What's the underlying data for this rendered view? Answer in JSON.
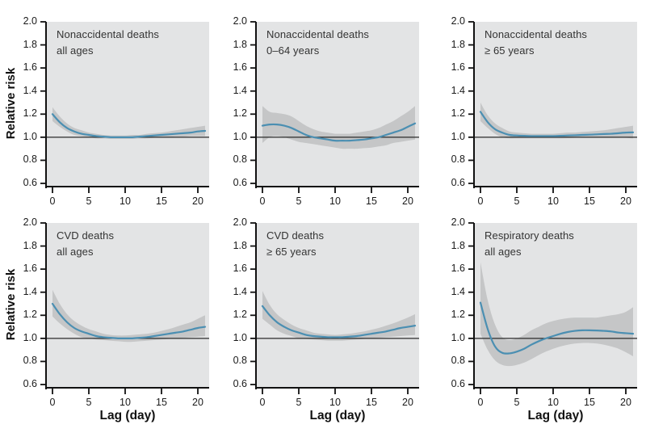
{
  "chart_data": {
    "type": "line",
    "ylabel": "Relative risk",
    "xlabel": "Lag (day)",
    "x_ticks": [
      0,
      5,
      10,
      15,
      20
    ],
    "y_ticks": [
      2.0,
      1.8,
      1.6,
      1.4,
      1.2,
      1.0,
      0.8,
      0.6
    ],
    "xlim": [
      0,
      21
    ],
    "ylim": [
      0.6,
      2.0
    ],
    "reference_line_y": 1.0,
    "grid": false,
    "legend": "none",
    "colors": {
      "panel_bg": "#e3e4e5",
      "band": "#c5c6c7",
      "line": "#4b8fb2",
      "reference": "#2a2a2a",
      "axis": "#111111",
      "tick_text": "#1a1a1a",
      "title_text": "#333333"
    },
    "x": [
      0,
      1,
      2,
      3,
      4,
      5,
      6,
      7,
      8,
      9,
      10,
      11,
      12,
      13,
      14,
      15,
      16,
      17,
      18,
      19,
      20,
      21
    ],
    "panels": [
      {
        "title_line1": "Nonaccidental deaths",
        "title_line2": "all ages",
        "y": [
          1.2,
          1.13,
          1.08,
          1.05,
          1.03,
          1.02,
          1.01,
          1.005,
          1.0,
          1.0,
          1.0,
          1.0,
          1.005,
          1.01,
          1.015,
          1.02,
          1.025,
          1.03,
          1.035,
          1.04,
          1.05,
          1.055
        ],
        "lo": [
          1.14,
          1.09,
          1.05,
          1.02,
          1.01,
          1.0,
          0.99,
          0.99,
          0.985,
          0.985,
          0.985,
          0.985,
          0.99,
          0.99,
          0.995,
          1.0,
          1.0,
          1.005,
          1.005,
          1.01,
          1.01,
          1.01
        ],
        "hi": [
          1.26,
          1.18,
          1.12,
          1.08,
          1.06,
          1.04,
          1.03,
          1.02,
          1.015,
          1.015,
          1.015,
          1.02,
          1.02,
          1.03,
          1.035,
          1.04,
          1.05,
          1.06,
          1.07,
          1.08,
          1.09,
          1.1
        ]
      },
      {
        "title_line1": "Nonaccidental deaths",
        "title_line2": "0–64 years",
        "y": [
          1.1,
          1.11,
          1.11,
          1.1,
          1.08,
          1.05,
          1.02,
          1.0,
          0.99,
          0.98,
          0.97,
          0.97,
          0.97,
          0.975,
          0.98,
          0.99,
          1.0,
          1.02,
          1.04,
          1.06,
          1.09,
          1.12
        ],
        "lo": [
          0.95,
          1.0,
          1.01,
          1.0,
          0.98,
          0.96,
          0.95,
          0.94,
          0.93,
          0.92,
          0.91,
          0.9,
          0.9,
          0.9,
          0.905,
          0.91,
          0.92,
          0.93,
          0.95,
          0.96,
          0.97,
          0.98
        ],
        "hi": [
          1.27,
          1.22,
          1.21,
          1.2,
          1.18,
          1.14,
          1.1,
          1.07,
          1.05,
          1.04,
          1.03,
          1.03,
          1.03,
          1.04,
          1.05,
          1.06,
          1.08,
          1.11,
          1.14,
          1.18,
          1.22,
          1.27
        ]
      },
      {
        "title_line1": "Nonaccidental deaths",
        "title_line2": "≥ 65 years",
        "y": [
          1.22,
          1.13,
          1.07,
          1.04,
          1.02,
          1.015,
          1.012,
          1.01,
          1.01,
          1.01,
          1.01,
          1.012,
          1.015,
          1.017,
          1.02,
          1.022,
          1.025,
          1.028,
          1.03,
          1.035,
          1.04,
          1.042
        ],
        "lo": [
          1.14,
          1.08,
          1.03,
          1.0,
          0.99,
          0.99,
          0.99,
          0.99,
          0.99,
          0.99,
          0.99,
          0.99,
          0.992,
          0.995,
          0.995,
          0.995,
          0.995,
          0.995,
          0.995,
          0.995,
          0.995,
          0.99
        ],
        "hi": [
          1.3,
          1.19,
          1.12,
          1.08,
          1.05,
          1.04,
          1.035,
          1.03,
          1.03,
          1.03,
          1.03,
          1.035,
          1.04,
          1.04,
          1.045,
          1.05,
          1.055,
          1.06,
          1.07,
          1.08,
          1.09,
          1.1
        ]
      },
      {
        "title_line1": "CVD deaths",
        "title_line2": "all ages",
        "y": [
          1.3,
          1.21,
          1.14,
          1.09,
          1.06,
          1.04,
          1.02,
          1.01,
          1.005,
          1.0,
          1.0,
          1.0,
          1.005,
          1.01,
          1.02,
          1.03,
          1.04,
          1.05,
          1.06,
          1.075,
          1.09,
          1.1
        ],
        "lo": [
          1.19,
          1.13,
          1.08,
          1.04,
          1.01,
          1.0,
          0.99,
          0.985,
          0.98,
          0.975,
          0.97,
          0.97,
          0.975,
          0.98,
          0.985,
          0.99,
          0.995,
          1.0,
          1.005,
          1.01,
          1.015,
          1.02
        ],
        "hi": [
          1.42,
          1.3,
          1.21,
          1.15,
          1.11,
          1.08,
          1.06,
          1.04,
          1.03,
          1.025,
          1.025,
          1.03,
          1.035,
          1.04,
          1.05,
          1.065,
          1.08,
          1.1,
          1.12,
          1.14,
          1.17,
          1.2
        ]
      },
      {
        "title_line1": "CVD deaths",
        "title_line2": "≥ 65 years",
        "y": [
          1.28,
          1.2,
          1.14,
          1.1,
          1.07,
          1.05,
          1.03,
          1.02,
          1.015,
          1.01,
          1.01,
          1.01,
          1.015,
          1.02,
          1.03,
          1.04,
          1.05,
          1.06,
          1.075,
          1.09,
          1.1,
          1.11
        ],
        "lo": [
          1.17,
          1.12,
          1.07,
          1.04,
          1.02,
          1.0,
          0.995,
          0.99,
          0.985,
          0.98,
          0.98,
          0.98,
          0.985,
          0.99,
          0.995,
          1.0,
          1.005,
          1.01,
          1.015,
          1.02,
          1.025,
          1.03
        ],
        "hi": [
          1.41,
          1.29,
          1.21,
          1.16,
          1.12,
          1.09,
          1.07,
          1.05,
          1.04,
          1.035,
          1.03,
          1.035,
          1.04,
          1.05,
          1.06,
          1.075,
          1.09,
          1.11,
          1.13,
          1.155,
          1.18,
          1.21
        ]
      },
      {
        "title_line1": "Respiratory deaths",
        "title_line2": "all ages",
        "y": [
          1.31,
          1.08,
          0.93,
          0.875,
          0.87,
          0.885,
          0.91,
          0.945,
          0.975,
          1.0,
          1.02,
          1.04,
          1.055,
          1.065,
          1.07,
          1.07,
          1.068,
          1.065,
          1.06,
          1.05,
          1.045,
          1.04
        ],
        "lo": [
          1.04,
          0.9,
          0.81,
          0.77,
          0.76,
          0.77,
          0.79,
          0.82,
          0.855,
          0.885,
          0.91,
          0.93,
          0.945,
          0.955,
          0.96,
          0.96,
          0.955,
          0.945,
          0.93,
          0.91,
          0.88,
          0.845
        ],
        "hi": [
          1.66,
          1.33,
          1.12,
          1.01,
          0.985,
          1.0,
          1.03,
          1.07,
          1.1,
          1.13,
          1.15,
          1.165,
          1.175,
          1.18,
          1.18,
          1.18,
          1.18,
          1.19,
          1.2,
          1.21,
          1.23,
          1.27
        ]
      }
    ]
  }
}
